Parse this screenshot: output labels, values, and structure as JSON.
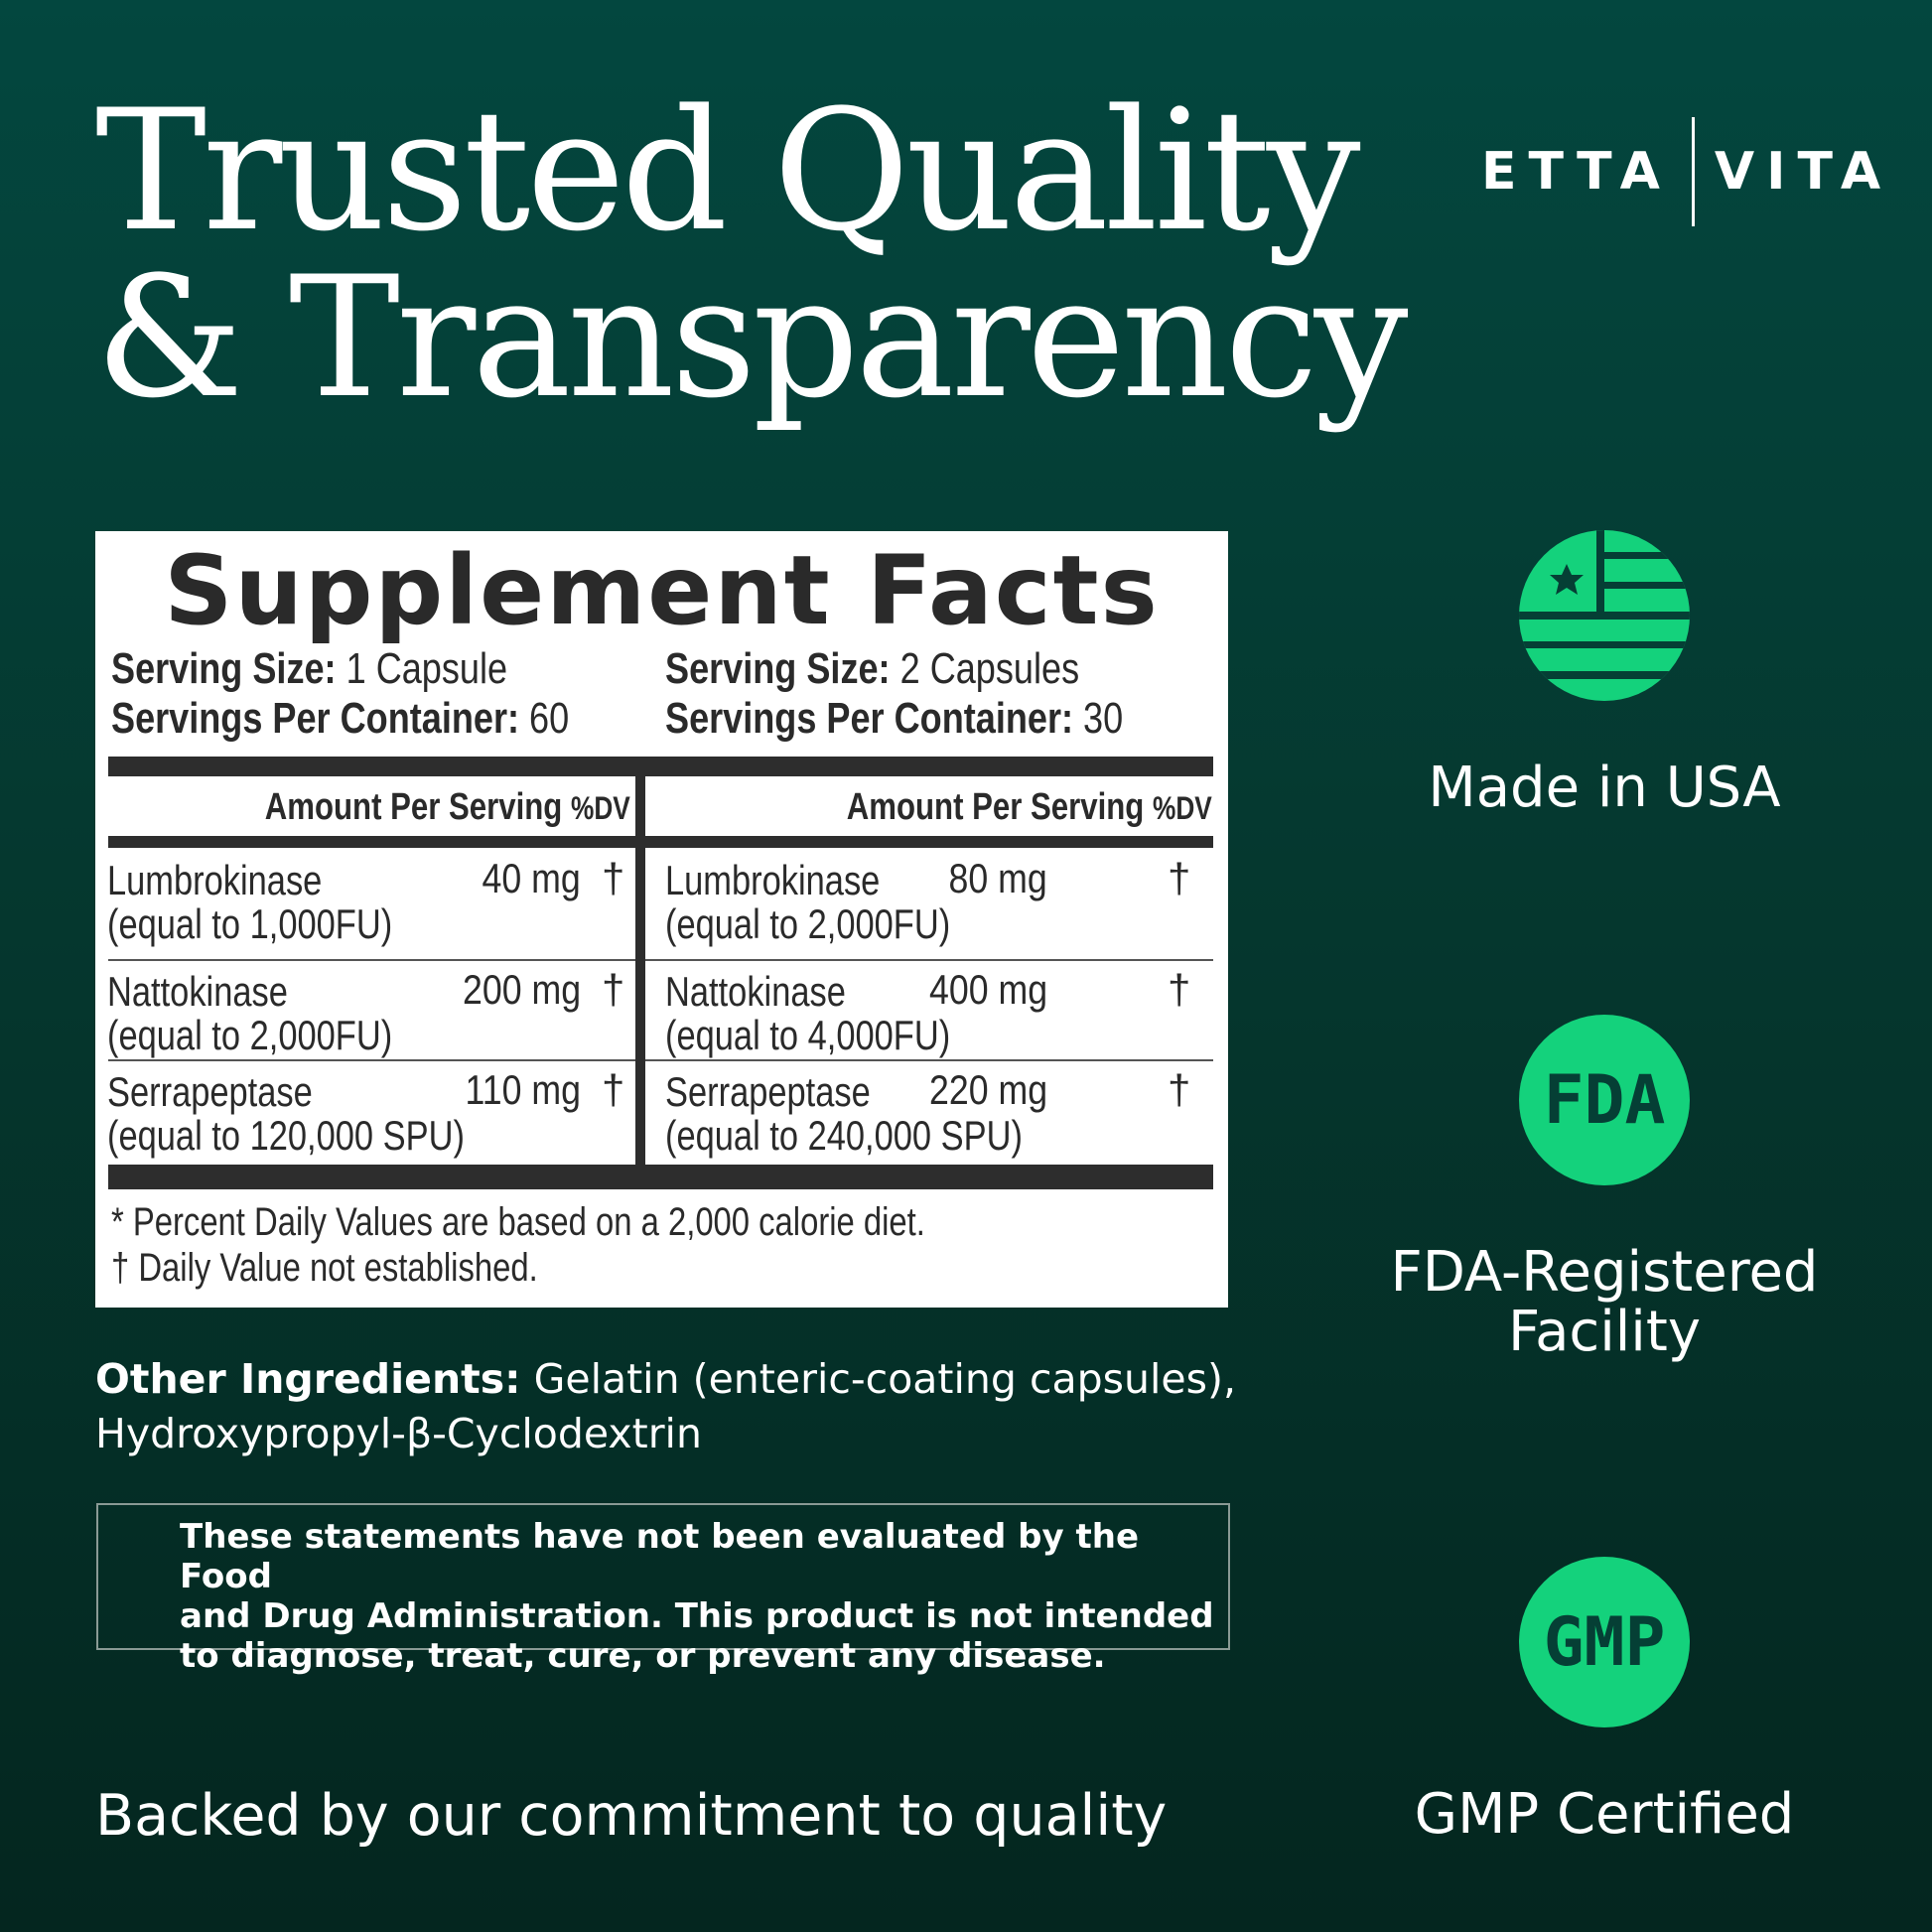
{
  "headline": {
    "line1": "Trusted Quality",
    "line2": "& Transparency"
  },
  "brand": {
    "left": "ETTA",
    "right": "VITA"
  },
  "facts": {
    "title": "Supplement Facts",
    "left": {
      "serving_size_label": "Serving Size:",
      "serving_size": " 1 Capsule",
      "servings_label": "Servings Per Container:",
      "servings": " 60",
      "header": "Amount Per Serving",
      "dv": "%DV",
      "rows": [
        {
          "name": "Lumbrokinase",
          "sub": "(equal to 1,000FU)",
          "amount": "40 mg",
          "dv": "†"
        },
        {
          "name": "Nattokinase",
          "sub": "(equal to 2,000FU)",
          "amount": "200 mg",
          "dv": "†"
        },
        {
          "name": "Serrapeptase",
          "sub": "(equal to 120,000 SPU)",
          "amount": "110 mg",
          "dv": "†"
        }
      ]
    },
    "right": {
      "serving_size_label": "Serving Size:",
      "serving_size": " 2 Capsules",
      "servings_label": "Servings Per Container:",
      "servings": " 30",
      "header": "Amount Per Serving",
      "dv": "%DV",
      "rows": [
        {
          "name": "Lumbrokinase",
          "sub": "(equal to 2,000FU)",
          "amount": "80 mg",
          "dv": "†"
        },
        {
          "name": "Nattokinase",
          "sub": "(equal to 4,000FU)",
          "amount": "400 mg",
          "dv": "†"
        },
        {
          "name": "Serrapeptase",
          "sub": "(equal to 240,000 SPU)",
          "amount": "220 mg",
          "dv": "†"
        }
      ]
    },
    "footnote1": "* Percent Daily Values are based on a 2,000 calorie diet.",
    "footnote2": "† Daily Value not established."
  },
  "other_ingredients": {
    "label": "Other Ingredients:",
    "text": " Gelatin (enteric-coating capsules), Hydroxypropyl-β-Cyclodextrin"
  },
  "disclaimer": [
    "These statements have not been evaluated by the Food",
    "and Drug Administration. This product is not intended",
    "to diagnose, treat, cure, or prevent any disease."
  ],
  "tagline": "Backed by our commitment to quality",
  "badges": [
    {
      "icon": "usa-flag-icon",
      "label": "Made in USA"
    },
    {
      "icon": "FDA",
      "label": "FDA-Registered Facility",
      "line1": "FDA-Registered",
      "line2": "Facility"
    },
    {
      "icon": "GMP",
      "label": "GMP Certified"
    }
  ],
  "colors": {
    "accent": "#14d27c",
    "bg_top": "#03473f",
    "bg_bottom": "#04261f"
  }
}
